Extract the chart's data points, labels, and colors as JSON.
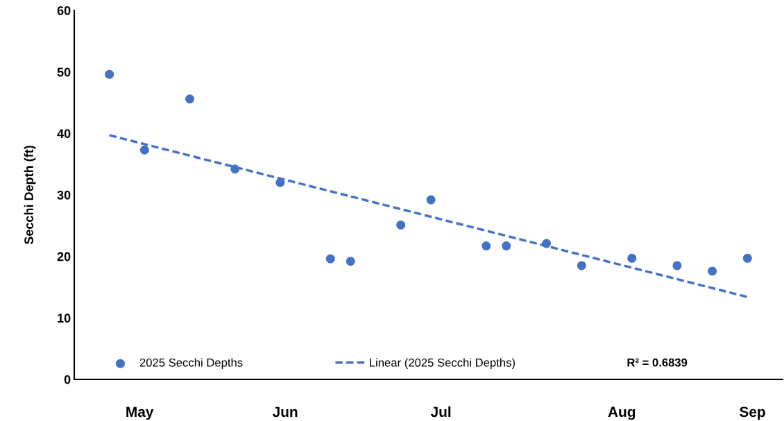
{
  "chart_data": {
    "type": "scatter",
    "ylabel": "Secchi Depth (ft)",
    "x": [
      "2025-05-09",
      "2025-05-16",
      "2025-05-25",
      "2025-06-03",
      "2025-06-12",
      "2025-06-22",
      "2025-06-26",
      "2025-07-06",
      "2025-07-12",
      "2025-07-23",
      "2025-07-27",
      "2025-08-04",
      "2025-08-11",
      "2025-08-21",
      "2025-08-30",
      "2025-09-06",
      "2025-09-13"
    ],
    "series": [
      {
        "name": "2025 Secchi Depths",
        "color": "#4472c4",
        "marker": "circle",
        "values": [
          49.6,
          37.3,
          45.6,
          34.2,
          32.0,
          19.6,
          19.2,
          25.1,
          29.2,
          21.7,
          21.7,
          22.1,
          18.5,
          19.7,
          18.5,
          17.6,
          19.7
        ]
      },
      {
        "name": "Linear (2025 Secchi Depths)",
        "type": "line",
        "color": "#4472c4",
        "line_style": "dashed",
        "marker": "none",
        "x": [
          "2025-05-09",
          "2025-09-13"
        ],
        "values": [
          39.7,
          13.4
        ]
      }
    ],
    "xlim": [
      "2025-05-02",
      "2025-09-20"
    ],
    "xticks": [
      {
        "value": "2025-05-15",
        "label": "May"
      },
      {
        "value": "2025-06-13",
        "label": "Jun"
      },
      {
        "value": "2025-07-14",
        "label": "Jul"
      },
      {
        "value": "2025-08-19",
        "label": "Aug"
      },
      {
        "value": "2025-09-14",
        "label": "Sep"
      }
    ],
    "ylim": [
      0,
      60
    ],
    "yticks": [
      0,
      10,
      20,
      30,
      40,
      50,
      60
    ],
    "annotations": [
      "R² = 0.6839"
    ],
    "legend": "bottom",
    "grid": false
  }
}
